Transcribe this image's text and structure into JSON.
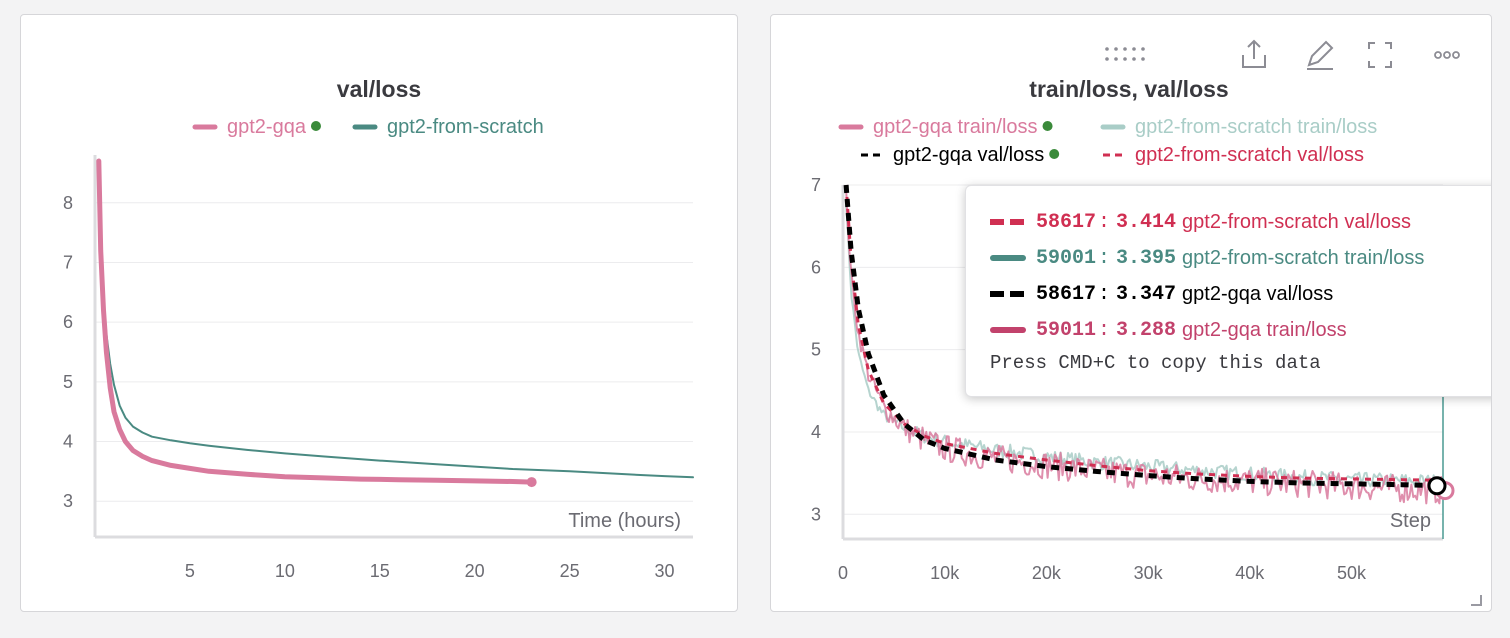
{
  "colors": {
    "pink": "#d97a9d",
    "pink_dark": "#c2426c",
    "teal": "#4a8a82",
    "teal_light": "#a9cdc7",
    "black": "#000000",
    "red": "#d02f52"
  },
  "toolbar": {
    "icons": [
      "drag-handle-icon",
      "share-icon",
      "edit-icon",
      "fullscreen-icon",
      "more-icon"
    ]
  },
  "chart_data": [
    {
      "type": "line",
      "title": "val/loss",
      "xlabel": "Time (hours)",
      "ylabel": "",
      "xlim": [
        0,
        31.5
      ],
      "ylim": [
        2.4,
        8.8
      ],
      "xticks": [
        "5",
        "10",
        "15",
        "20",
        "25",
        "30"
      ],
      "yticks": [
        "3",
        "4",
        "5",
        "6",
        "7",
        "8"
      ],
      "grid": true,
      "legend_position": "top",
      "series": [
        {
          "name": "gpt2-gqa",
          "color_key": "pink",
          "marker": "dot",
          "x": [
            0.2,
            0.3,
            0.45,
            0.6,
            0.8,
            1.0,
            1.3,
            1.6,
            2.0,
            2.5,
            3.0,
            4.0,
            5.0,
            6.0,
            8.0,
            10.0,
            12.0,
            14.0,
            16.0,
            18.0,
            20.0,
            22.0,
            23.0
          ],
          "y": [
            8.7,
            7.2,
            6.2,
            5.5,
            4.9,
            4.5,
            4.2,
            4.0,
            3.85,
            3.75,
            3.68,
            3.6,
            3.55,
            3.5,
            3.45,
            3.41,
            3.39,
            3.37,
            3.36,
            3.35,
            3.34,
            3.33,
            3.32
          ]
        },
        {
          "name": "gpt2-from-scratch",
          "color_key": "teal",
          "marker": "none",
          "x": [
            0.2,
            0.3,
            0.45,
            0.6,
            0.8,
            1.0,
            1.3,
            1.6,
            2.0,
            2.5,
            3.0,
            4.0,
            5.0,
            6.0,
            8.0,
            10.0,
            12.0,
            15.0,
            18.0,
            20.0,
            22.0,
            25.0,
            28.0,
            30.0,
            31.5
          ],
          "y": [
            8.7,
            7.3,
            6.4,
            5.8,
            5.3,
            4.95,
            4.6,
            4.4,
            4.25,
            4.15,
            4.08,
            4.02,
            3.97,
            3.93,
            3.86,
            3.8,
            3.75,
            3.68,
            3.62,
            3.58,
            3.54,
            3.5,
            3.45,
            3.42,
            3.4
          ]
        }
      ]
    },
    {
      "type": "line",
      "title": "train/loss, val/loss",
      "xlabel": "Step",
      "ylabel": "",
      "xlim": [
        0,
        59000
      ],
      "ylim": [
        2.7,
        7.0
      ],
      "xticks": [
        "0",
        "10k",
        "20k",
        "30k",
        "40k",
        "50k"
      ],
      "yticks": [
        "3",
        "4",
        "5",
        "6",
        "7"
      ],
      "grid": true,
      "legend_position": "top",
      "series": [
        {
          "name": "gpt2-gqa train/loss",
          "color_key": "pink",
          "marker": "dot",
          "style": "noisy",
          "noise": 0.17,
          "x": [
            300,
            800,
            1500,
            2500,
            4000,
            6000,
            8000,
            10000,
            15000,
            20000,
            25000,
            30000,
            35000,
            40000,
            45000,
            50000,
            55000,
            59011
          ],
          "y": [
            6.9,
            5.9,
            5.2,
            4.7,
            4.3,
            4.05,
            3.9,
            3.8,
            3.68,
            3.6,
            3.52,
            3.47,
            3.43,
            3.4,
            3.37,
            3.34,
            3.31,
            3.288
          ]
        },
        {
          "name": "gpt2-from-scratch train/loss",
          "color_key": "teal_light",
          "marker": "none",
          "style": "noisy",
          "noise": 0.09,
          "x": [
            300,
            800,
            1500,
            2500,
            4000,
            6000,
            8000,
            10000,
            15000,
            20000,
            25000,
            30000,
            35000,
            40000,
            45000,
            50000,
            55000,
            59001
          ],
          "y": [
            6.8,
            5.7,
            4.95,
            4.5,
            4.2,
            4.05,
            3.95,
            3.88,
            3.78,
            3.7,
            3.63,
            3.58,
            3.53,
            3.49,
            3.45,
            3.42,
            3.41,
            3.395
          ]
        },
        {
          "name": "gpt2-gqa val/loss",
          "color_key": "black",
          "marker": "dot",
          "style": "dashed",
          "x": [
            300,
            800,
            1500,
            2500,
            4000,
            6000,
            8000,
            10000,
            15000,
            20000,
            25000,
            30000,
            35000,
            40000,
            45000,
            50000,
            55000,
            58617
          ],
          "y": [
            7.0,
            6.2,
            5.5,
            4.95,
            4.45,
            4.1,
            3.9,
            3.8,
            3.66,
            3.58,
            3.52,
            3.47,
            3.43,
            3.4,
            3.38,
            3.37,
            3.36,
            3.347
          ]
        },
        {
          "name": "gpt2-from-scratch val/loss",
          "color_key": "red",
          "marker": "none",
          "style": "dashed",
          "x": [
            300,
            800,
            1500,
            2500,
            4000,
            6000,
            8000,
            10000,
            15000,
            20000,
            25000,
            30000,
            35000,
            40000,
            45000,
            50000,
            55000,
            58617
          ],
          "y": [
            7.0,
            6.1,
            5.3,
            4.75,
            4.35,
            4.1,
            3.95,
            3.86,
            3.74,
            3.66,
            3.59,
            3.53,
            3.49,
            3.46,
            3.44,
            3.43,
            3.42,
            3.414
          ]
        }
      ],
      "tooltip": {
        "rows": [
          {
            "step": "58617",
            "value": "3.414",
            "name": "gpt2-from-scratch val/loss",
            "color_key": "red",
            "style": "dashed"
          },
          {
            "step": "59001",
            "value": "3.395",
            "name": "gpt2-from-scratch train/loss",
            "color_key": "teal",
            "style": "solid"
          },
          {
            "step": "58617",
            "value": "3.347",
            "name": "gpt2-gqa val/loss",
            "color_key": "black",
            "style": "dashed"
          },
          {
            "step": "59011",
            "value": "3.288",
            "name": "gpt2-gqa train/loss",
            "color_key": "pink_dark",
            "style": "solid"
          }
        ],
        "hint": "Press CMD+C to copy this data"
      }
    }
  ]
}
